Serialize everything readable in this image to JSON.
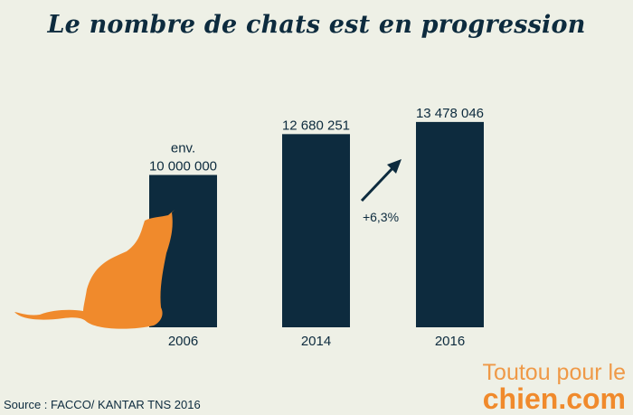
{
  "chart_data": {
    "type": "bar",
    "title": "Le nombre de chats est en progression",
    "categories": [
      "2006",
      "2014",
      "2016"
    ],
    "values": [
      10000000,
      12680251,
      13478046
    ],
    "data_labels": [
      [
        "env.",
        "10 000 000"
      ],
      [
        "12 680 251"
      ],
      [
        "13 478 046"
      ]
    ],
    "annotation": "+6,3%",
    "ylim": [
      0,
      13478046
    ],
    "grid": false,
    "bar_color": "#0d2b3e",
    "accent_color": "#f08a2c"
  },
  "source": "Source :  FACCO/ KANTAR TNS 2016",
  "logo": {
    "line1": "Toutou pour le",
    "line2": "chien.com"
  }
}
